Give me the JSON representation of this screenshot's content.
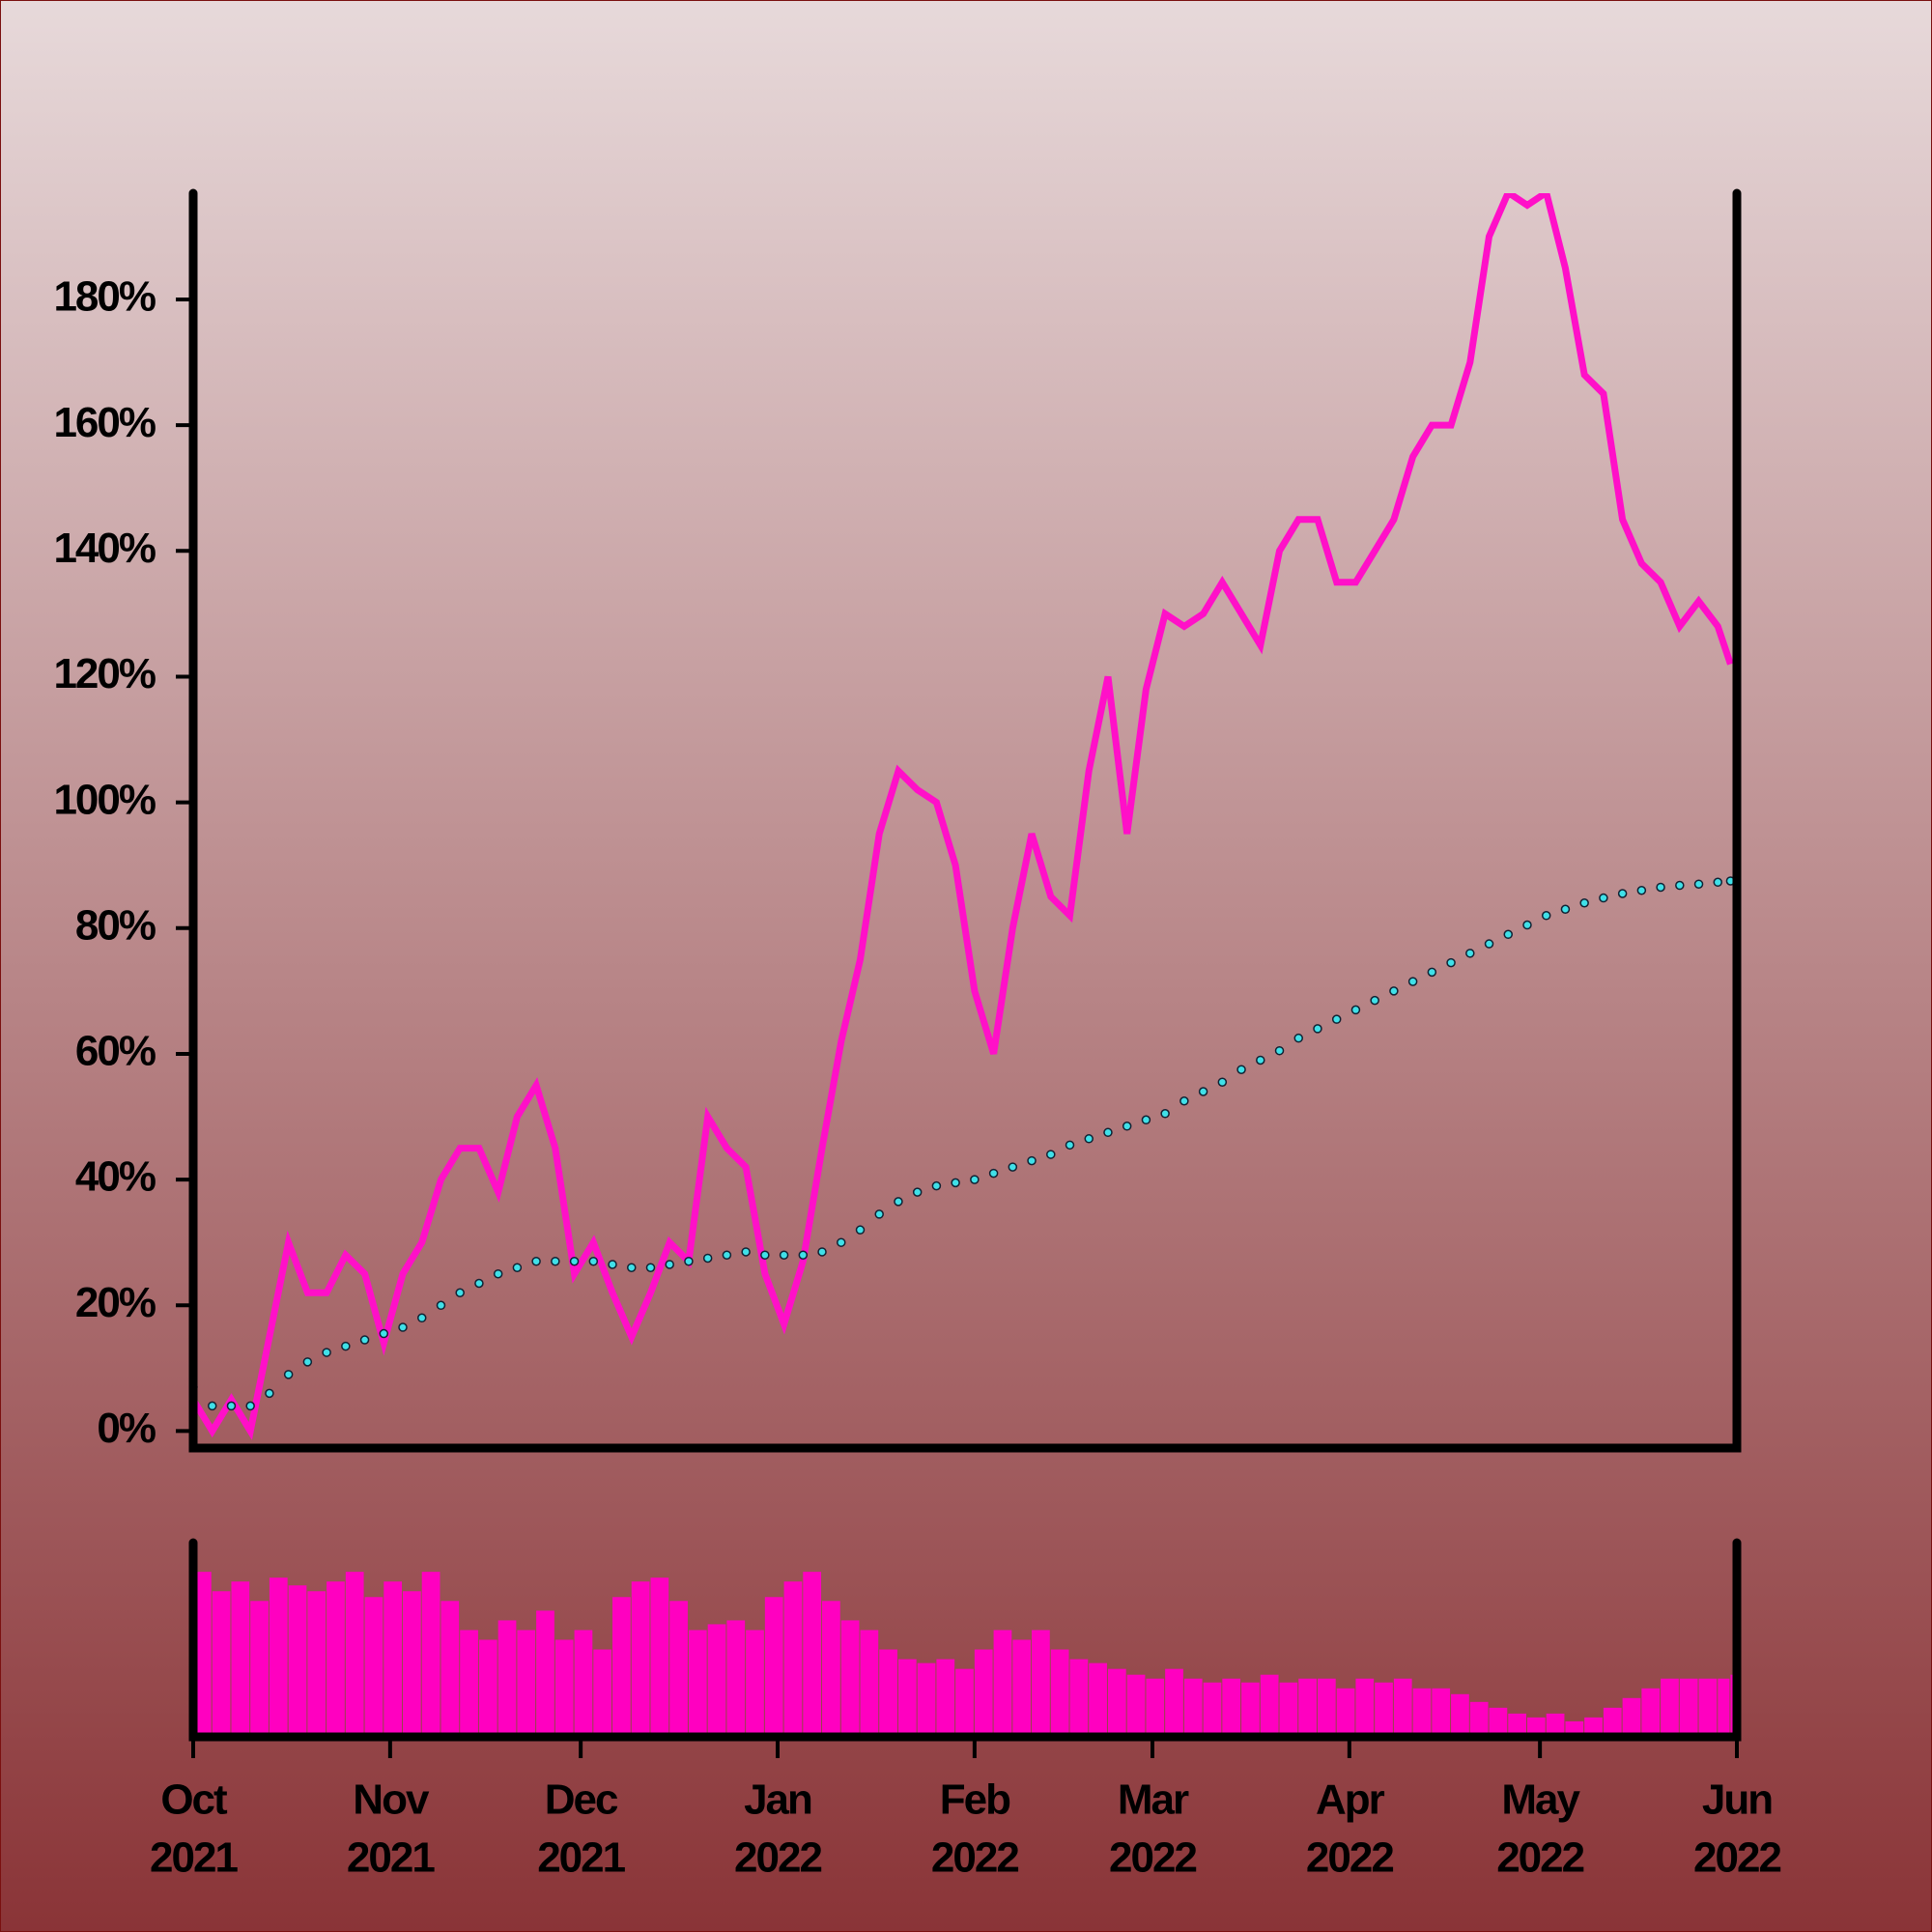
{
  "chart_data": [
    {
      "type": "line",
      "x": [
        0,
        3,
        6,
        9,
        12,
        15,
        18,
        21,
        24,
        27,
        30,
        33,
        36,
        39,
        42,
        45,
        48,
        51,
        54,
        57,
        60,
        63,
        66,
        69,
        72,
        75,
        78,
        81,
        84,
        87,
        90,
        93,
        96,
        99,
        102,
        105,
        108,
        111,
        114,
        117,
        120,
        123,
        126,
        129,
        132,
        135,
        138,
        141,
        144,
        147,
        150,
        153,
        156,
        159,
        162,
        165,
        168,
        171,
        174,
        177,
        180,
        183,
        186,
        189,
        192,
        195,
        198,
        201,
        204,
        207,
        210,
        213,
        216,
        219,
        222,
        225,
        228,
        231,
        234,
        237,
        240,
        242
      ],
      "xlim": [
        0,
        243
      ],
      "ylim": [
        -2.7,
        196.9
      ],
      "yticks": [
        {
          "value": 0,
          "label": "0%"
        },
        {
          "value": 20,
          "label": "20%"
        },
        {
          "value": 40,
          "label": "40%"
        },
        {
          "value": 60,
          "label": "60%"
        },
        {
          "value": 80,
          "label": "80%"
        },
        {
          "value": 100,
          "label": "100%"
        },
        {
          "value": 120,
          "label": "120%"
        },
        {
          "value": 140,
          "label": "140%"
        },
        {
          "value": 160,
          "label": "160%"
        },
        {
          "value": 180,
          "label": "180%"
        }
      ],
      "series": [
        {
          "color": "#ff10c8",
          "values": [
            5,
            0,
            5,
            0,
            15,
            30,
            22,
            22,
            28,
            25,
            14,
            25,
            30,
            40,
            45,
            45,
            38,
            50,
            55,
            45,
            25,
            30,
            22,
            15,
            22,
            30,
            27,
            50,
            45,
            42,
            25,
            17,
            27,
            45,
            62,
            75,
            95,
            105,
            102,
            100,
            90,
            70,
            60,
            80,
            95,
            85,
            82,
            105,
            120,
            95,
            118,
            130,
            128,
            130,
            135,
            130,
            125,
            140,
            145,
            145,
            135,
            135,
            140,
            145,
            155,
            160,
            160,
            170,
            190,
            197,
            195,
            197,
            185,
            168,
            165,
            145,
            138,
            135,
            128,
            132,
            128,
            122
          ]
        },
        {
          "color": "#40e0e8",
          "marker": "dots",
          "values": [
            7,
            4,
            4,
            4,
            6,
            9,
            11,
            12.5,
            13.5,
            14.5,
            15.5,
            16.5,
            18,
            20,
            22,
            23.5,
            25,
            26,
            27,
            27,
            27,
            27,
            26.5,
            26,
            26,
            26.5,
            27,
            27.5,
            28,
            28.5,
            28,
            28,
            28,
            28.5,
            30,
            32,
            34.5,
            36.5,
            38,
            39,
            39.5,
            40,
            41,
            42,
            43,
            44,
            45.5,
            46.5,
            47.5,
            48.5,
            49.5,
            50.5,
            52.5,
            54,
            55.5,
            57.5,
            59,
            60.5,
            62.5,
            64,
            65.5,
            67,
            68.5,
            70,
            71.5,
            73,
            74.5,
            76,
            77.5,
            79,
            80.5,
            82,
            83,
            84,
            84.8,
            85.5,
            86,
            86.5,
            86.8,
            87,
            87.3,
            87.5
          ]
        }
      ]
    },
    {
      "type": "bar",
      "x": [
        0,
        3,
        6,
        9,
        12,
        15,
        18,
        21,
        24,
        27,
        30,
        33,
        36,
        39,
        42,
        45,
        48,
        51,
        54,
        57,
        60,
        63,
        66,
        69,
        72,
        75,
        78,
        81,
        84,
        87,
        90,
        93,
        96,
        99,
        102,
        105,
        108,
        111,
        114,
        117,
        120,
        123,
        126,
        129,
        132,
        135,
        138,
        141,
        144,
        147,
        150,
        153,
        156,
        159,
        162,
        165,
        168,
        171,
        174,
        177,
        180,
        183,
        186,
        189,
        192,
        195,
        198,
        201,
        204,
        207,
        210,
        213,
        216,
        219,
        222,
        225,
        228,
        231,
        234,
        237,
        240,
        242
      ],
      "xlim": [
        0,
        243
      ],
      "ylim": [
        0,
        100
      ],
      "color": "#ff00c0",
      "values": [
        85,
        75,
        80,
        70,
        82,
        78,
        75,
        80,
        85,
        72,
        80,
        75,
        85,
        70,
        55,
        50,
        60,
        55,
        65,
        50,
        55,
        45,
        72,
        80,
        82,
        70,
        55,
        58,
        60,
        55,
        72,
        80,
        85,
        70,
        60,
        55,
        45,
        40,
        38,
        40,
        35,
        45,
        55,
        50,
        55,
        45,
        40,
        38,
        35,
        32,
        30,
        35,
        30,
        28,
        30,
        28,
        32,
        28,
        30,
        30,
        25,
        30,
        28,
        30,
        25,
        25,
        22,
        18,
        15,
        12,
        10,
        12,
        8,
        10,
        15,
        20,
        25,
        30,
        30,
        30,
        30,
        32
      ]
    }
  ],
  "xticks": [
    {
      "value": 0,
      "label": [
        "Oct",
        "2021"
      ]
    },
    {
      "value": 31,
      "label": [
        "Nov",
        "2021"
      ]
    },
    {
      "value": 61,
      "label": [
        "Dec",
        "2021"
      ]
    },
    {
      "value": 92,
      "label": [
        "Jan",
        "2022"
      ]
    },
    {
      "value": 123,
      "label": [
        "Feb",
        "2022"
      ]
    },
    {
      "value": 151,
      "label": [
        "Mar",
        "2022"
      ]
    },
    {
      "value": 182,
      "label": [
        "Apr",
        "2022"
      ]
    },
    {
      "value": 212,
      "label": [
        "May",
        "2022"
      ]
    },
    {
      "value": 243,
      "label": [
        "Jun",
        "2022"
      ]
    }
  ]
}
